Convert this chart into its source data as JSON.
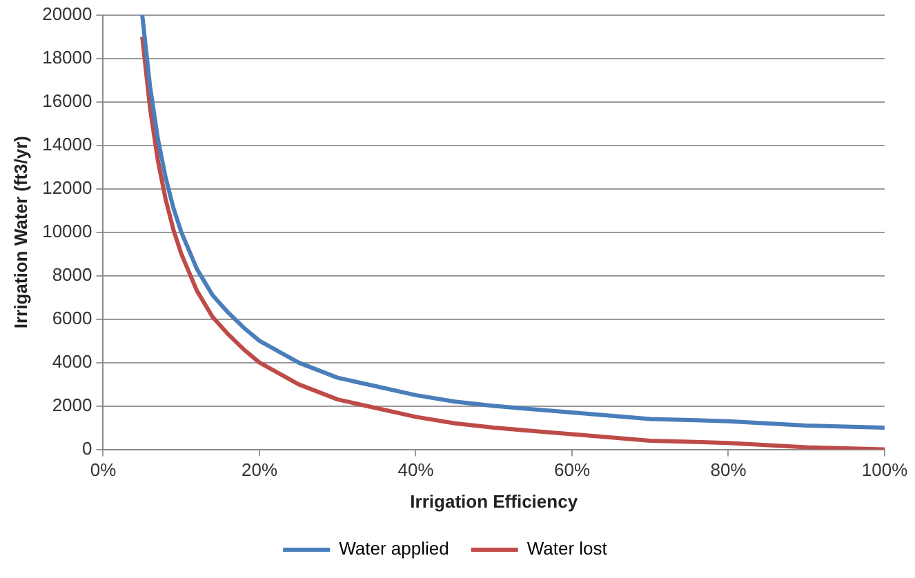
{
  "chart_data": {
    "type": "line",
    "xlabel": "Irrigation Efficiency",
    "ylabel": "Irrigation Water (ft3/yr)",
    "x": [
      5,
      6,
      7,
      8,
      9,
      10,
      12,
      14,
      16,
      18,
      20,
      25,
      30,
      35,
      40,
      45,
      50,
      60,
      70,
      80,
      90,
      100
    ],
    "series": [
      {
        "name": "Water applied",
        "color": "#4a7ebb",
        "values": [
          20000,
          16700,
          14300,
          12500,
          11100,
          10000,
          8300,
          7100,
          6300,
          5600,
          5000,
          4000,
          3300,
          2900,
          2500,
          2200,
          2000,
          1700,
          1400,
          1300,
          1100,
          1000
        ]
      },
      {
        "name": "Water lost",
        "color": "#be4b48",
        "values": [
          19000,
          15700,
          13300,
          11500,
          10100,
          9000,
          7300,
          6100,
          5300,
          4600,
          4000,
          3000,
          2300,
          1900,
          1500,
          1200,
          1000,
          700,
          400,
          300,
          100,
          0
        ]
      }
    ],
    "xlim": [
      0,
      100
    ],
    "xticks": [
      {
        "value": 0,
        "label": "0%"
      },
      {
        "value": 20,
        "label": "20%"
      },
      {
        "value": 40,
        "label": "40%"
      },
      {
        "value": 60,
        "label": "60%"
      },
      {
        "value": 80,
        "label": "80%"
      },
      {
        "value": 100,
        "label": "100%"
      }
    ],
    "ylim": [
      0,
      20000
    ],
    "yticks": [
      0,
      2000,
      4000,
      6000,
      8000,
      10000,
      12000,
      14000,
      16000,
      18000,
      20000
    ],
    "grid": "y",
    "legend": "bottom",
    "marker": "none",
    "line_style": "solid"
  }
}
